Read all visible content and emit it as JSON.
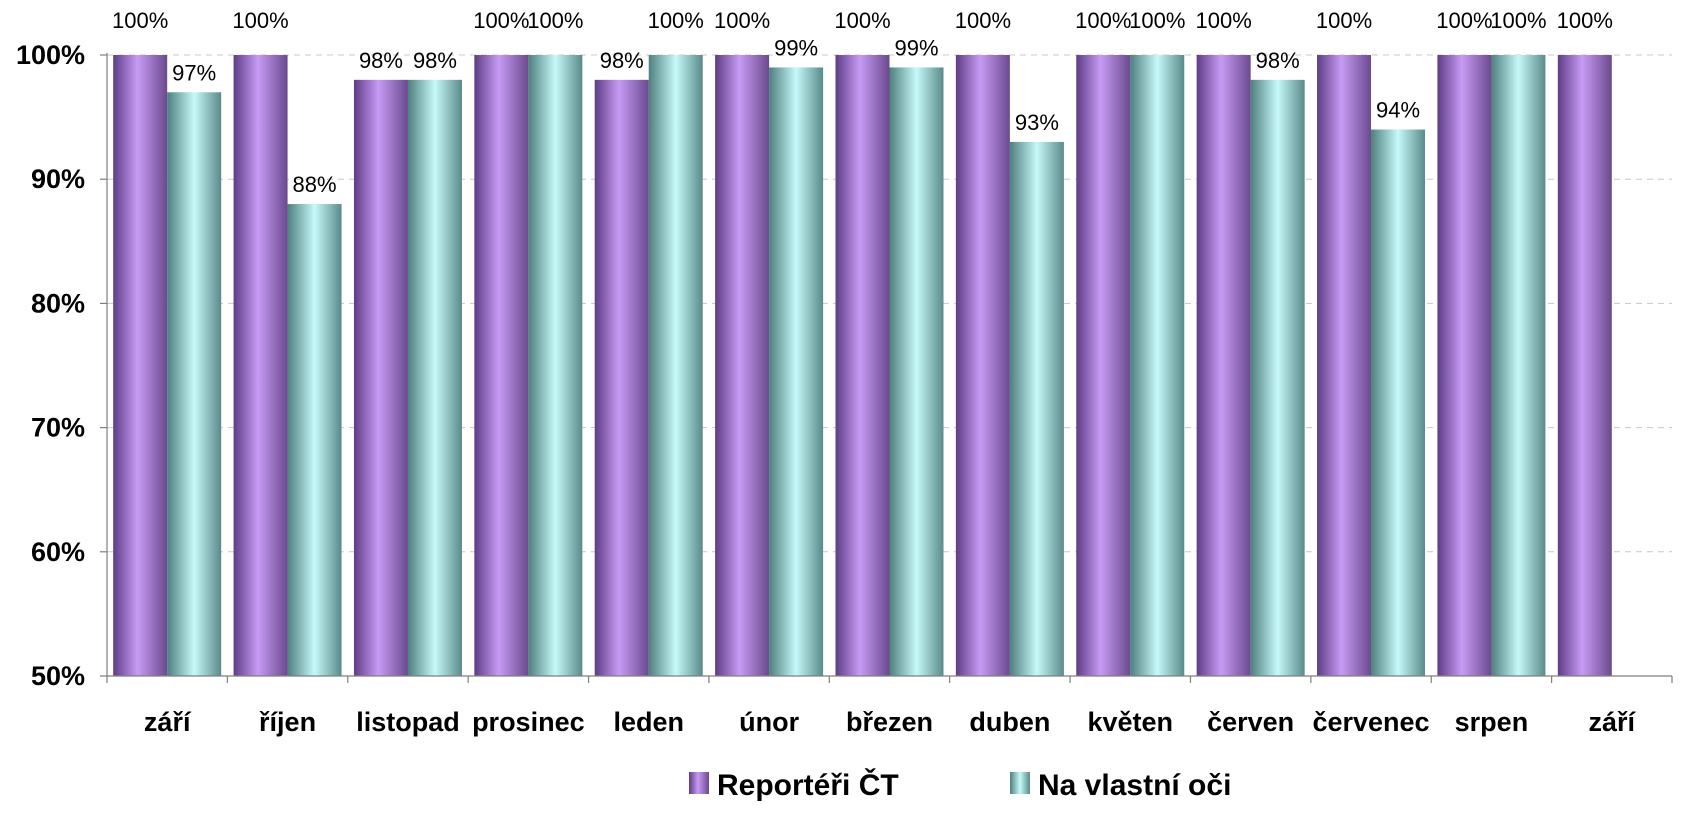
{
  "chart_data": {
    "type": "bar",
    "categories": [
      "září",
      "říjen",
      "listopad",
      "prosinec",
      "leden",
      "únor",
      "březen",
      "duben",
      "květen",
      "červen",
      "červenec",
      "srpen",
      "září"
    ],
    "series": [
      {
        "name": "Reportéři ČT",
        "values": [
          100,
          100,
          98,
          100,
          98,
          100,
          100,
          100,
          100,
          100,
          100,
          100,
          100
        ],
        "labels": [
          "100%",
          "100%",
          "98%",
          "100%",
          "98%",
          "100%",
          "100%",
          "100%",
          "100%",
          "100%",
          "100%",
          "100%",
          "100%"
        ]
      },
      {
        "name": "Na vlastní oči",
        "values": [
          97,
          88,
          98,
          100,
          100,
          99,
          99,
          93,
          100,
          98,
          94,
          100,
          null
        ],
        "labels": [
          "97%",
          "88%",
          "98%",
          "100%",
          "100%",
          "99%",
          "99%",
          "93%",
          "100%",
          "98%",
          "94%",
          "100%",
          null
        ]
      }
    ],
    "yticks": [
      "50%",
      "60%",
      "70%",
      "80%",
      "90%",
      "100%"
    ],
    "ylim": [
      50,
      100
    ],
    "grid": true,
    "legend": "bottom",
    "colors": {
      "series1": [
        "#5e3c85",
        "#c79bf5",
        "#6a4a8e"
      ],
      "series2": [
        "#4f7f7f",
        "#c6f9f9",
        "#5a8a8a"
      ],
      "grid": "#c8c8c8",
      "axis": "#7f7f7f"
    }
  }
}
